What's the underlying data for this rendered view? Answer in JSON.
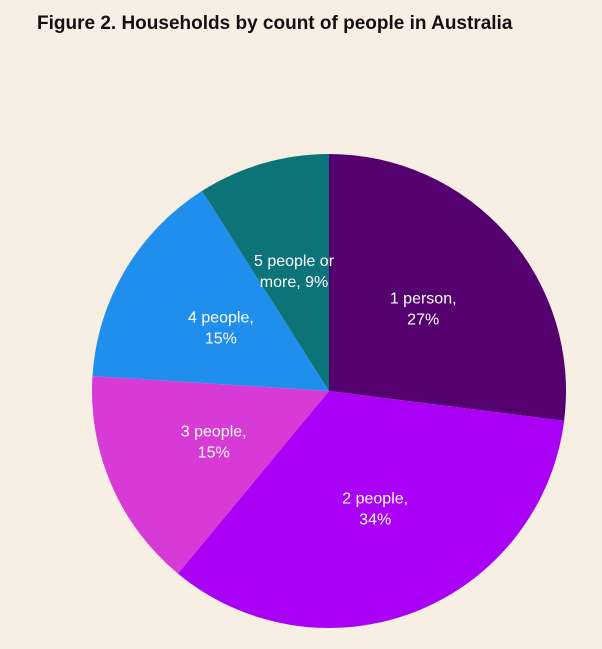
{
  "chart_data": {
    "type": "pie",
    "title": "Figure 2. Households by count of people in Australia",
    "start": "12 o'clock",
    "direction": "clockwise",
    "slices": [
      {
        "lines": [
          "1 person,",
          "27%"
        ],
        "value": 27,
        "color": "#55006f"
      },
      {
        "lines": [
          "2 people,",
          "34%"
        ],
        "value": 34,
        "color": "#aa00f6"
      },
      {
        "lines": [
          "3 people,",
          "15%"
        ],
        "value": 15,
        "color": "#d83ad6"
      },
      {
        "lines": [
          "4 people,",
          "15%"
        ],
        "value": 15,
        "color": "#1f8eec"
      },
      {
        "lines": [
          "5 people or",
          "more, 9%"
        ],
        "value": 9,
        "color": "#0c7479"
      }
    ]
  }
}
